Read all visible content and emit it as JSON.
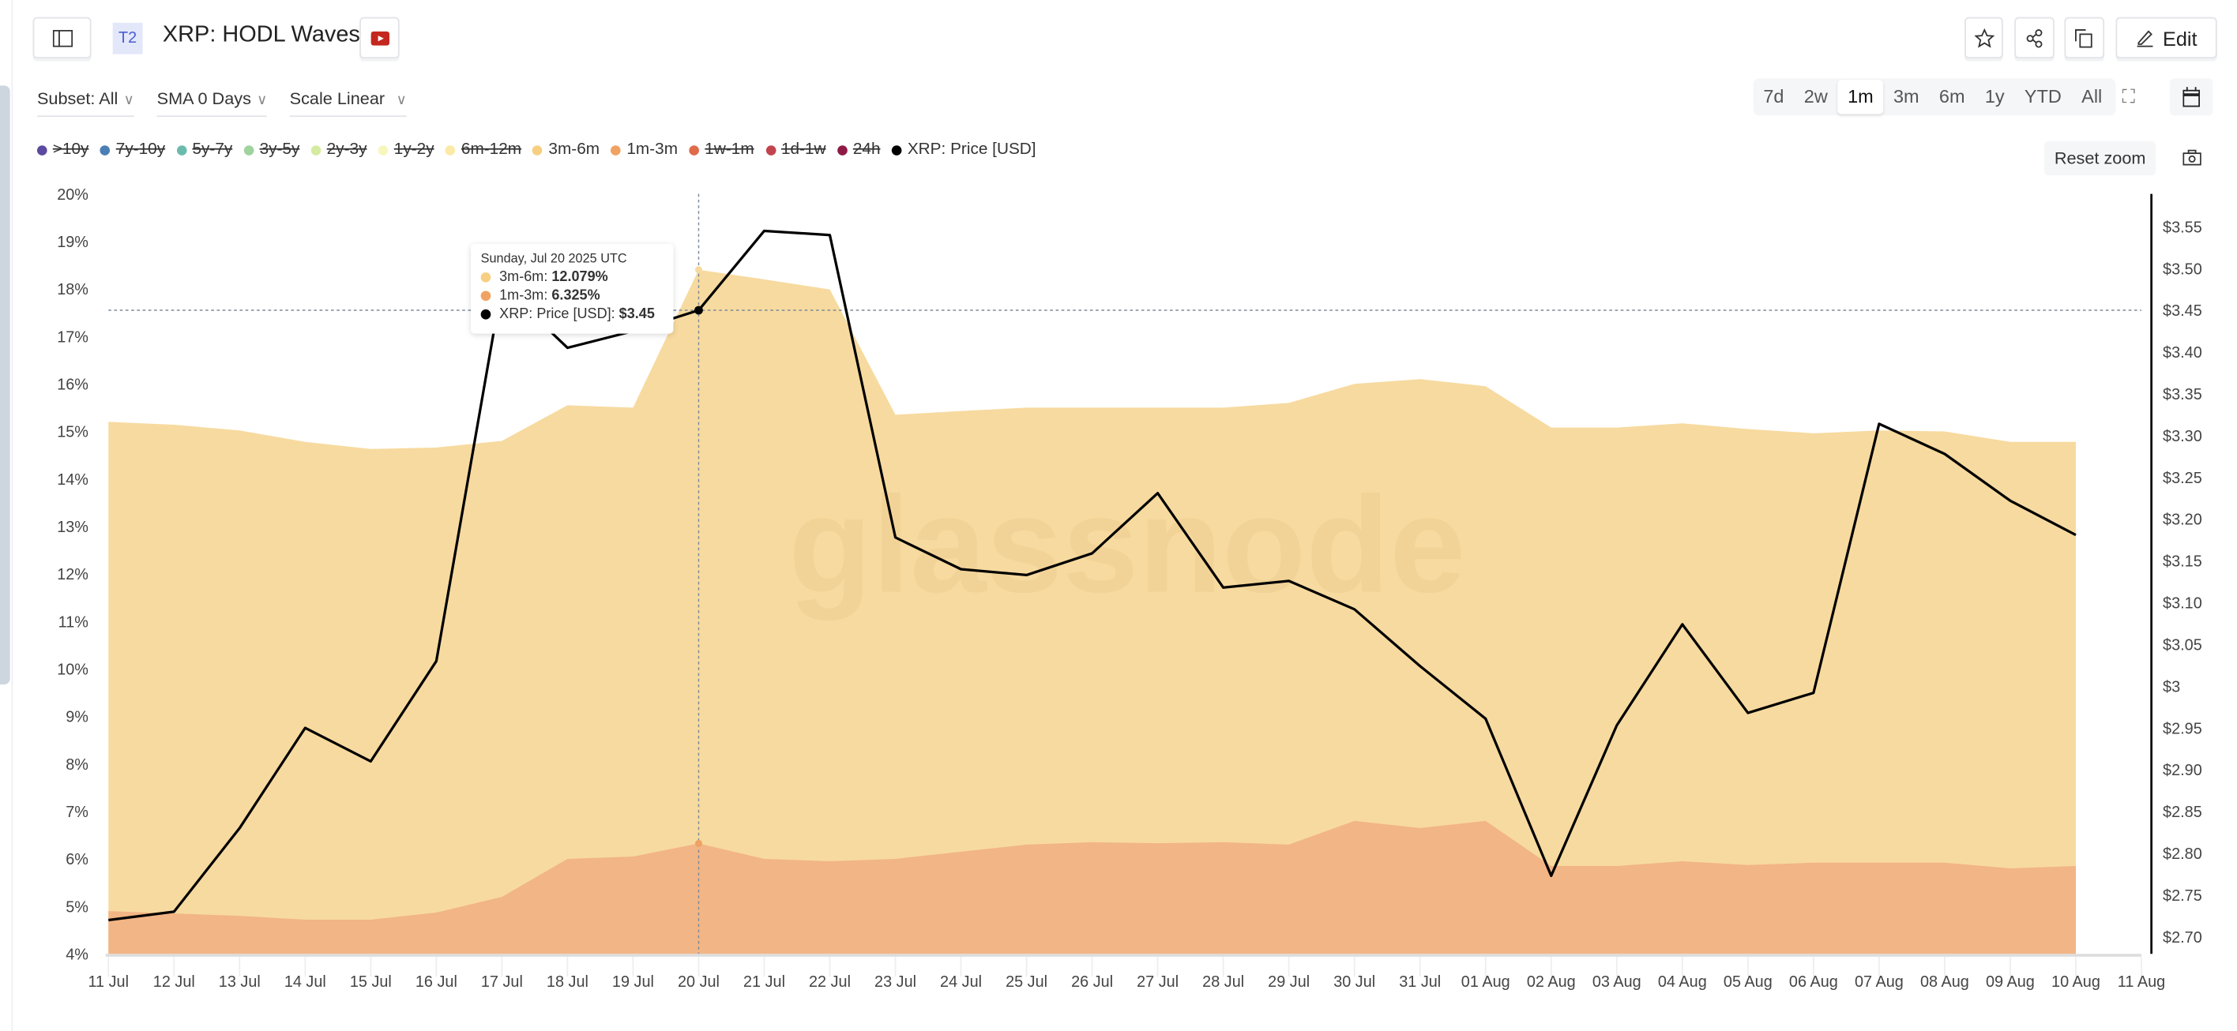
{
  "header": {
    "badge": "T2",
    "title": "XRP: HODL Waves",
    "edit_label": "Edit"
  },
  "controls": {
    "subset": "Subset: All",
    "sma": "SMA 0 Days",
    "scale": "Scale Linear"
  },
  "ranges": [
    "7d",
    "2w",
    "1m",
    "3m",
    "6m",
    "1y",
    "YTD",
    "All"
  ],
  "active_range": "1m",
  "reset_zoom": "Reset zoom",
  "legend": [
    {
      "label": ">10y",
      "color": "#5b4a9e",
      "enabled": false
    },
    {
      "label": "7y-10y",
      "color": "#4a7fb5",
      "enabled": false
    },
    {
      "label": "5y-7y",
      "color": "#6bbbad",
      "enabled": false
    },
    {
      "label": "3y-5y",
      "color": "#9fd3a0",
      "enabled": false
    },
    {
      "label": "2y-3y",
      "color": "#d5eba0",
      "enabled": false
    },
    {
      "label": "1y-2y",
      "color": "#f6f7bd",
      "enabled": false
    },
    {
      "label": "6m-12m",
      "color": "#fbe9a6",
      "enabled": false
    },
    {
      "label": "3m-6m",
      "color": "#f6cf82",
      "enabled": true
    },
    {
      "label": "1m-3m",
      "color": "#f0a263",
      "enabled": true
    },
    {
      "label": "1w-1m",
      "color": "#e06b4a",
      "enabled": false
    },
    {
      "label": "1d-1w",
      "color": "#c2444e",
      "enabled": false
    },
    {
      "label": "24h",
      "color": "#8e1a45",
      "enabled": false
    },
    {
      "label": "XRP: Price [USD]",
      "color": "#000000",
      "enabled": true
    }
  ],
  "tooltip": {
    "date": "Sunday, Jul 20 2025 UTC",
    "rows": [
      {
        "label": "3m-6m: ",
        "value": "12.079%",
        "color": "#f6cf82"
      },
      {
        "label": "1m-3m: ",
        "value": "6.325%",
        "color": "#f0a263"
      },
      {
        "label": "XRP: Price [USD]: ",
        "value": "$3.45",
        "color": "#000000"
      }
    ]
  },
  "watermark": "glassnode",
  "chart_data": {
    "type": "area",
    "x": [
      "11 Jul",
      "12 Jul",
      "13 Jul",
      "14 Jul",
      "15 Jul",
      "16 Jul",
      "17 Jul",
      "18 Jul",
      "19 Jul",
      "20 Jul",
      "21 Jul",
      "22 Jul",
      "23 Jul",
      "24 Jul",
      "25 Jul",
      "26 Jul",
      "27 Jul",
      "28 Jul",
      "29 Jul",
      "30 Jul",
      "31 Jul",
      "01 Aug",
      "02 Aug",
      "03 Aug",
      "04 Aug",
      "05 Aug",
      "06 Aug",
      "07 Aug",
      "08 Aug",
      "09 Aug",
      "10 Aug"
    ],
    "x_ticks": [
      "11 Jul",
      "12 Jul",
      "13 Jul",
      "14 Jul",
      "15 Jul",
      "16 Jul",
      "17 Jul",
      "18 Jul",
      "19 Jul",
      "20 Jul",
      "21 Jul",
      "22 Jul",
      "23 Jul",
      "24 Jul",
      "25 Jul",
      "26 Jul",
      "27 Jul",
      "28 Jul",
      "29 Jul",
      "30 Jul",
      "31 Jul",
      "01 Aug",
      "02 Aug",
      "03 Aug",
      "04 Aug",
      "05 Aug",
      "06 Aug",
      "07 Aug",
      "08 Aug",
      "09 Aug",
      "10 Aug",
      "11 Aug"
    ],
    "series": [
      {
        "name": "1m-3m",
        "axis": "left",
        "stacked": true,
        "color": "#f2b585",
        "values": [
          4.9,
          4.85,
          4.8,
          4.72,
          4.72,
          4.87,
          5.2,
          6.0,
          6.05,
          6.325,
          6.0,
          5.95,
          6.0,
          6.15,
          6.3,
          6.35,
          6.33,
          6.35,
          6.3,
          6.8,
          6.65,
          6.8,
          5.85,
          5.85,
          5.95,
          5.87,
          5.92,
          5.92,
          5.92,
          5.8,
          5.85
        ]
      },
      {
        "name": "3m-6m",
        "axis": "left",
        "stacked": true,
        "color": "#f7da9f",
        "values": [
          10.3,
          10.29,
          10.22,
          10.06,
          9.91,
          9.79,
          9.6,
          9.55,
          9.45,
          12.079,
          12.2,
          12.04,
          9.35,
          9.28,
          9.2,
          9.15,
          9.17,
          9.15,
          9.3,
          9.2,
          9.45,
          9.15,
          9.23,
          9.23,
          9.22,
          9.18,
          9.04,
          9.1,
          9.08,
          8.98,
          8.93
        ]
      },
      {
        "name": "XRP: Price [USD]",
        "axis": "right",
        "color": "#000000",
        "values": [
          2.72,
          2.73,
          2.83,
          2.95,
          2.91,
          3.03,
          3.48,
          3.405,
          3.425,
          3.45,
          3.545,
          3.54,
          3.178,
          3.14,
          3.133,
          3.159,
          3.231,
          3.118,
          3.126,
          3.092,
          3.024,
          2.961,
          2.773,
          2.953,
          3.074,
          2.968,
          2.992,
          3.314,
          3.278,
          3.222,
          3.181
        ]
      }
    ],
    "y_left": {
      "ticks": [
        "20%",
        "19%",
        "18%",
        "17%",
        "16%",
        "15%",
        "14%",
        "13%",
        "12%",
        "11%",
        "10%",
        "9%",
        "8%",
        "7%",
        "6%",
        "5%",
        "4%"
      ],
      "range": [
        4,
        20
      ]
    },
    "y_right": {
      "ticks": [
        "$3.55",
        "$3.50",
        "$3.45",
        "$3.40",
        "$3.35",
        "$3.30",
        "$3.25",
        "$3.20",
        "$3.15",
        "$3.10",
        "$3.05",
        "$3",
        "$2.95",
        "$2.90",
        "$2.85",
        "$2.80",
        "$2.75",
        "$2.70"
      ],
      "range": [
        2.68,
        3.59
      ]
    },
    "crosshair": {
      "x": "20 Jul",
      "price": 3.45
    },
    "grid": false
  }
}
